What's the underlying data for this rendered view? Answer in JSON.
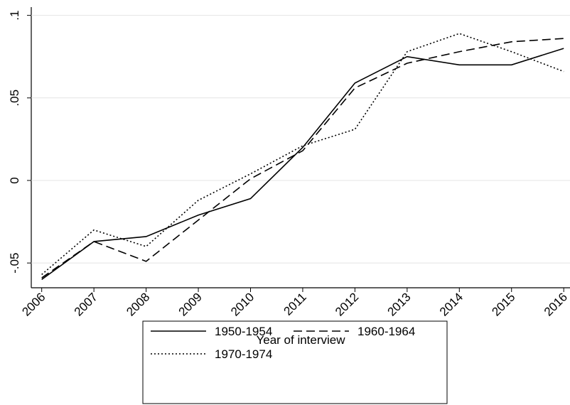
{
  "chart_data": {
    "type": "line",
    "x_label": "Year of interview",
    "x": [
      2006,
      2007,
      2008,
      2009,
      2010,
      2011,
      2012,
      2013,
      2014,
      2015,
      2016
    ],
    "series": [
      {
        "name": "1950-1954",
        "color": "#000000",
        "line_style": "solid",
        "values": [
          -0.06,
          -0.037,
          -0.034,
          -0.021,
          -0.011,
          0.02,
          0.059,
          0.075,
          0.07,
          0.07,
          0.08
        ]
      },
      {
        "name": "1960-1964",
        "color": "#000000",
        "line_style": "dashed",
        "values": [
          -0.059,
          -0.037,
          -0.049,
          -0.024,
          0.001,
          0.018,
          0.056,
          0.071,
          0.078,
          0.084,
          0.086
        ]
      },
      {
        "name": "1970-1974",
        "color": "#000000",
        "line_style": "dotted",
        "values": [
          -0.057,
          -0.03,
          -0.04,
          -0.012,
          0.004,
          0.021,
          0.031,
          0.078,
          0.089,
          0.078,
          0.066
        ]
      }
    ],
    "xlim": [
      2005.8,
      2016.12
    ],
    "xticks": [
      2006,
      2007,
      2008,
      2009,
      2010,
      2011,
      2012,
      2013,
      2014,
      2015,
      2016
    ],
    "ylim": [
      -0.065,
      0.105
    ],
    "yticks": [
      {
        "value": -0.05,
        "label": "-.05"
      },
      0,
      {
        "value": 0.05,
        "label": ".05"
      },
      {
        "value": 0.1,
        "label": ".1"
      }
    ],
    "grid": true
  }
}
